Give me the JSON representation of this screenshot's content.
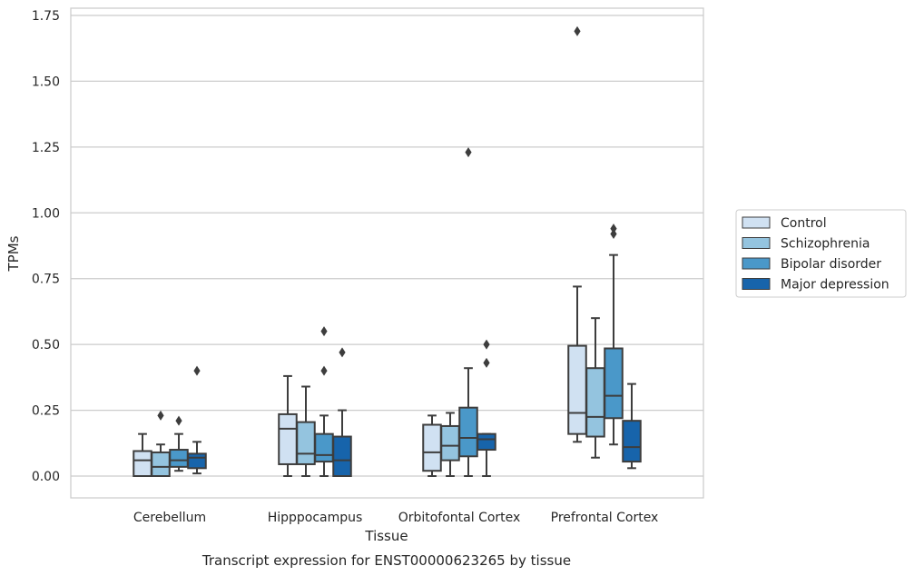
{
  "chart_data": {
    "type": "box",
    "title": "",
    "caption": "Transcript expression for ENST00000623265 by tissue",
    "xlabel": "Tissue",
    "ylabel": "TPMs",
    "ylim": [
      -0.08,
      1.78
    ],
    "yticks": [
      0.0,
      0.25,
      0.5,
      0.75,
      1.0,
      1.25,
      1.5,
      1.75
    ],
    "ytick_labels": [
      "0.00",
      "0.25",
      "0.50",
      "0.75",
      "1.00",
      "1.25",
      "1.50",
      "1.75"
    ],
    "grid": "horizontal",
    "legend_position": "right",
    "categories": [
      "Cerebellum",
      "Hipppocampus",
      "Orbitofontal Cortex",
      "Prefrontal Cortex"
    ],
    "series": [
      {
        "name": "Control",
        "color": "#d0e1f2",
        "boxes": [
          {
            "whisker_low": 0.0,
            "q1": 0.0,
            "median": 0.06,
            "q3": 0.095,
            "whisker_high": 0.16,
            "outliers": []
          },
          {
            "whisker_low": 0.0,
            "q1": 0.045,
            "median": 0.18,
            "q3": 0.235,
            "whisker_high": 0.38,
            "outliers": []
          },
          {
            "whisker_low": 0.0,
            "q1": 0.02,
            "median": 0.09,
            "q3": 0.195,
            "whisker_high": 0.23,
            "outliers": []
          },
          {
            "whisker_low": 0.13,
            "q1": 0.16,
            "median": 0.24,
            "q3": 0.495,
            "whisker_high": 0.72,
            "outliers": [
              1.69
            ]
          }
        ]
      },
      {
        "name": "Schizophrenia",
        "color": "#94c4df",
        "boxes": [
          {
            "whisker_low": 0.0,
            "q1": 0.0,
            "median": 0.035,
            "q3": 0.09,
            "whisker_high": 0.12,
            "outliers": [
              0.23
            ]
          },
          {
            "whisker_low": 0.0,
            "q1": 0.045,
            "median": 0.085,
            "q3": 0.205,
            "whisker_high": 0.34,
            "outliers": []
          },
          {
            "whisker_low": 0.0,
            "q1": 0.06,
            "median": 0.115,
            "q3": 0.19,
            "whisker_high": 0.24,
            "outliers": []
          },
          {
            "whisker_low": 0.07,
            "q1": 0.15,
            "median": 0.225,
            "q3": 0.41,
            "whisker_high": 0.6,
            "outliers": []
          }
        ]
      },
      {
        "name": "Bipolar disorder",
        "color": "#4a98c9",
        "boxes": [
          {
            "whisker_low": 0.02,
            "q1": 0.035,
            "median": 0.06,
            "q3": 0.1,
            "whisker_high": 0.16,
            "outliers": [
              0.21
            ]
          },
          {
            "whisker_low": 0.0,
            "q1": 0.055,
            "median": 0.08,
            "q3": 0.16,
            "whisker_high": 0.23,
            "outliers": [
              0.4,
              0.55
            ]
          },
          {
            "whisker_low": 0.0,
            "q1": 0.075,
            "median": 0.145,
            "q3": 0.26,
            "whisker_high": 0.41,
            "outliers": [
              1.23
            ]
          },
          {
            "whisker_low": 0.12,
            "q1": 0.22,
            "median": 0.305,
            "q3": 0.485,
            "whisker_high": 0.84,
            "outliers": [
              0.92,
              0.94
            ]
          }
        ]
      },
      {
        "name": "Major depression",
        "color": "#1764ab",
        "boxes": [
          {
            "whisker_low": 0.01,
            "q1": 0.03,
            "median": 0.07,
            "q3": 0.085,
            "whisker_high": 0.13,
            "outliers": [
              0.4
            ]
          },
          {
            "whisker_low": 0.0,
            "q1": 0.0,
            "median": 0.06,
            "q3": 0.15,
            "whisker_high": 0.25,
            "outliers": [
              0.47
            ]
          },
          {
            "whisker_low": 0.0,
            "q1": 0.1,
            "median": 0.14,
            "q3": 0.16,
            "whisker_high": 0.16,
            "outliers": [
              0.43,
              0.5
            ]
          },
          {
            "whisker_low": 0.03,
            "q1": 0.055,
            "median": 0.11,
            "q3": 0.21,
            "whisker_high": 0.35,
            "outliers": []
          }
        ]
      }
    ]
  }
}
